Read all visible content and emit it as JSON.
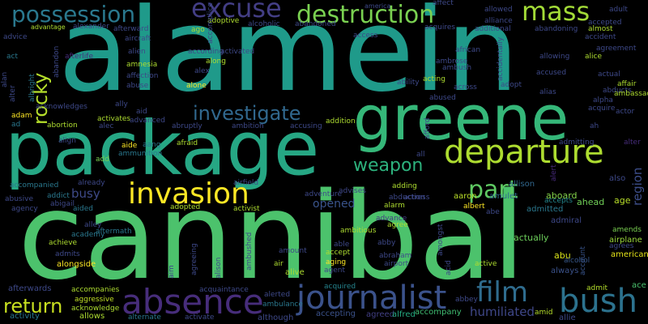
{
  "words": [
    {
      "text": "cannibal",
      "color": "#4cc26c"
    },
    {
      "text": "alamein",
      "color": "#1f9a8a"
    },
    {
      "text": "package",
      "color": "#26a784"
    },
    {
      "text": "greene",
      "color": "#35b779"
    },
    {
      "text": "absence",
      "color": "#472d7b"
    },
    {
      "text": "departure",
      "color": "#addc30"
    },
    {
      "text": "invasion",
      "color": "#fde725"
    },
    {
      "text": "journalist",
      "color": "#3b528b"
    },
    {
      "text": "excuse",
      "color": "#433e85"
    },
    {
      "text": "possession",
      "color": "#2a788e"
    },
    {
      "text": "destruction",
      "color": "#7ad151"
    },
    {
      "text": "mass",
      "color": "#a2da37"
    },
    {
      "text": "bush",
      "color": "#2c728e"
    },
    {
      "text": "investigate",
      "color": "#31688e"
    },
    {
      "text": "rocky",
      "color": "#b5de2b"
    },
    {
      "text": "part",
      "color": "#5ec962"
    },
    {
      "text": "film",
      "color": "#2f6c8e"
    },
    {
      "text": "weapon",
      "color": "#2db27d"
    },
    {
      "text": "return",
      "color": "#c8e020"
    },
    {
      "text": "busy",
      "color": "#3e4a89"
    },
    {
      "text": "humiliated",
      "color": "#3f4788"
    },
    {
      "text": "opened",
      "color": "#3a548c"
    },
    {
      "text": "region",
      "color": "#3d4e8a"
    },
    {
      "text": "aboard",
      "color": "#84d44b"
    },
    {
      "text": "also",
      "color": "#3e4989"
    },
    {
      "text": "actually",
      "color": "#6ccd5a"
    },
    {
      "text": "allison",
      "color": "#31688e"
    },
    {
      "text": "alert",
      "color": "#472a7a"
    },
    {
      "text": "ahead",
      "color": "#70cf57"
    },
    {
      "text": "age",
      "color": "#b8de29"
    },
    {
      "text": "aaron",
      "color": "#bade28"
    },
    {
      "text": "amulet",
      "color": "#2f6b8e"
    },
    {
      "text": "adventure",
      "color": "#3e4989"
    },
    {
      "text": "advises",
      "color": "#3f4788"
    },
    {
      "text": "admitted",
      "color": "#2a788e"
    },
    {
      "text": "admiral",
      "color": "#3e4989"
    },
    {
      "text": "advance",
      "color": "#443a83"
    },
    {
      "text": "abu",
      "color": "#d8e219"
    },
    {
      "text": "alcohol",
      "color": "#38588c"
    },
    {
      "text": "airplane",
      "color": "#9bd93c"
    },
    {
      "text": "american",
      "color": "#e5e419"
    },
    {
      "text": "always",
      "color": "#3b528b"
    },
    {
      "text": "amends",
      "color": "#7ad151"
    },
    {
      "text": "accepts",
      "color": "#24868e"
    },
    {
      "text": "account",
      "color": "#39558c"
    },
    {
      "text": "agrees",
      "color": "#3e4989"
    },
    {
      "text": "ace",
      "color": "#4ac16d"
    },
    {
      "text": "admit",
      "color": "#b5de2b"
    },
    {
      "text": "allie",
      "color": "#3e4989"
    },
    {
      "text": "amid",
      "color": "#b5de2b"
    },
    {
      "text": "abbey",
      "color": "#3e4989"
    },
    {
      "text": "accompany",
      "color": "#40bd72"
    },
    {
      "text": "agreed",
      "color": "#423f85"
    },
    {
      "text": "alfred",
      "color": "#25ab82"
    },
    {
      "text": "accepting",
      "color": "#3b528b"
    },
    {
      "text": "acquired",
      "color": "#25848e"
    },
    {
      "text": "although",
      "color": "#3e4989"
    },
    {
      "text": "ambulance",
      "color": "#2a788e"
    },
    {
      "text": "alerted",
      "color": "#3e4989"
    },
    {
      "text": "activate",
      "color": "#3e4989"
    },
    {
      "text": "alternate",
      "color": "#2a788e"
    },
    {
      "text": "allows",
      "color": "#addc30"
    },
    {
      "text": "activity",
      "color": "#2a788e"
    },
    {
      "text": "acknowledge",
      "color": "#addc30"
    },
    {
      "text": "aggressive",
      "color": "#c0df25"
    },
    {
      "text": "accompanies",
      "color": "#addc30"
    },
    {
      "text": "afterwards",
      "color": "#3e4989"
    },
    {
      "text": "alongside",
      "color": "#fde725"
    },
    {
      "text": "admits",
      "color": "#3e4989"
    },
    {
      "text": "achieve",
      "color": "#addc30"
    },
    {
      "text": "academy",
      "color": "#2a788e"
    },
    {
      "text": "alley",
      "color": "#3e4989"
    },
    {
      "text": "aftermath",
      "color": "#2a788e"
    },
    {
      "text": "aided",
      "color": "#2a788e"
    },
    {
      "text": "agency",
      "color": "#3e4989"
    },
    {
      "text": "abusive",
      "color": "#3e4989"
    },
    {
      "text": "addict",
      "color": "#2a788e"
    },
    {
      "text": "abigail",
      "color": "#3e4989"
    },
    {
      "text": "accompanied",
      "color": "#2a788e"
    },
    {
      "text": "already",
      "color": "#3e4989"
    },
    {
      "text": "add",
      "color": "#7ad151"
    },
    {
      "text": "adopted",
      "color": "#addc30"
    },
    {
      "text": "activist",
      "color": "#addc30"
    },
    {
      "text": "airfield",
      "color": "#3e4989"
    },
    {
      "text": "ammunition",
      "color": "#2a788e"
    },
    {
      "text": "aang",
      "color": "#2a788e"
    },
    {
      "text": "aide",
      "color": "#fde725"
    },
    {
      "text": "afraid",
      "color": "#addc30"
    },
    {
      "text": "align",
      "color": "#3e4989"
    },
    {
      "text": "abortion",
      "color": "#addc30"
    },
    {
      "text": "alec",
      "color": "#3e4989"
    },
    {
      "text": "advanced",
      "color": "#3e4989"
    },
    {
      "text": "activates",
      "color": "#addc30"
    },
    {
      "text": "aid",
      "color": "#3e4989"
    },
    {
      "text": "abruptly",
      "color": "#3e4989"
    },
    {
      "text": "ambition",
      "color": "#3e4989"
    },
    {
      "text": "accusing",
      "color": "#3e4989"
    },
    {
      "text": "addition",
      "color": "#addc30"
    },
    {
      "text": "adam",
      "color": "#fde725"
    },
    {
      "text": "ad",
      "color": "#2a788e"
    },
    {
      "text": "acknowledges",
      "color": "#3e4989"
    },
    {
      "text": "ally",
      "color": "#3e4989"
    },
    {
      "text": "albright",
      "color": "#2a788e"
    },
    {
      "text": "alter",
      "color": "#3e4989"
    },
    {
      "text": "alan",
      "color": "#3e4989"
    },
    {
      "text": "act",
      "color": "#2a788e"
    },
    {
      "text": "advice",
      "color": "#3e4989"
    },
    {
      "text": "advantage",
      "color": "#addc30"
    },
    {
      "text": "alexander",
      "color": "#3e4989"
    },
    {
      "text": "afterward",
      "color": "#3e4989"
    },
    {
      "text": "aircraft",
      "color": "#3e4989"
    },
    {
      "text": "adoptive",
      "color": "#addc30"
    },
    {
      "text": "alcoholic",
      "color": "#3e4989"
    },
    {
      "text": "abandoned",
      "color": "#3e4989"
    },
    {
      "text": "ago",
      "color": "#addc30"
    },
    {
      "text": "accomplice",
      "color": "#3e4989"
    },
    {
      "text": "afterlife",
      "color": "#472d7b"
    },
    {
      "text": "alien",
      "color": "#3e4989"
    },
    {
      "text": "according",
      "color": "#3e4989"
    },
    {
      "text": "activated",
      "color": "#3e4989"
    },
    {
      "text": "amnesia",
      "color": "#addc30"
    },
    {
      "text": "affection",
      "color": "#3e4989"
    },
    {
      "text": "abuse",
      "color": "#3e4989"
    },
    {
      "text": "along",
      "color": "#addc30"
    },
    {
      "text": "alex",
      "color": "#3e4989"
    },
    {
      "text": "alone",
      "color": "#fde725"
    },
    {
      "text": "abandon",
      "color": "#3e4989"
    },
    {
      "text": "america",
      "color": "#3e4989"
    },
    {
      "text": "affect",
      "color": "#3e4989"
    },
    {
      "text": "allowed",
      "color": "#3e4989"
    },
    {
      "text": "adult",
      "color": "#3e4989"
    },
    {
      "text": "acquires",
      "color": "#3e4989"
    },
    {
      "text": "alliance",
      "color": "#3e4989"
    },
    {
      "text": "additional",
      "color": "#3e4989"
    },
    {
      "text": "abandoning",
      "color": "#3e4989"
    },
    {
      "text": "accepted",
      "color": "#3e4989"
    },
    {
      "text": "almost",
      "color": "#addc30"
    },
    {
      "text": "access",
      "color": "#3e4989"
    },
    {
      "text": "african",
      "color": "#3e4989"
    },
    {
      "text": "accidentally",
      "color": "#3e4989"
    },
    {
      "text": "accident",
      "color": "#3e4989"
    },
    {
      "text": "agreement",
      "color": "#3e4989"
    },
    {
      "text": "alice",
      "color": "#addc30"
    },
    {
      "text": "allowing",
      "color": "#3e4989"
    },
    {
      "text": "actual",
      "color": "#3e4989"
    },
    {
      "text": "ambrose",
      "color": "#3e4989"
    },
    {
      "text": "ambush",
      "color": "#3e4989"
    },
    {
      "text": "accused",
      "color": "#3e4989"
    },
    {
      "text": "affair",
      "color": "#addc30"
    },
    {
      "text": "abducts",
      "color": "#3e4989"
    },
    {
      "text": "ambassador",
      "color": "#addc30"
    },
    {
      "text": "alpha",
      "color": "#3e4989"
    },
    {
      "text": "ability",
      "color": "#3e4989"
    },
    {
      "text": "acting",
      "color": "#addc30"
    },
    {
      "text": "across",
      "color": "#3e4989"
    },
    {
      "text": "adopt",
      "color": "#3e4989"
    },
    {
      "text": "alias",
      "color": "#3e4989"
    },
    {
      "text": "abused",
      "color": "#3e4989"
    },
    {
      "text": "acquire",
      "color": "#3e4989"
    },
    {
      "text": "actor",
      "color": "#3e4989"
    },
    {
      "text": "ah",
      "color": "#3e4989"
    },
    {
      "text": "alter",
      "color": "#472d7b"
    },
    {
      "text": "afford",
      "color": "#3e4989"
    },
    {
      "text": "all",
      "color": "#3e4989"
    },
    {
      "text": "admitting",
      "color": "#3e4989"
    },
    {
      "text": "actress",
      "color": "#3e4989"
    },
    {
      "text": "adding",
      "color": "#addc30"
    },
    {
      "text": "abduction",
      "color": "#3e4989"
    },
    {
      "text": "albert",
      "color": "#fde725"
    },
    {
      "text": "abe",
      "color": "#3e4989"
    },
    {
      "text": "alarm",
      "color": "#addc30"
    },
    {
      "text": "agree",
      "color": "#addc30"
    },
    {
      "text": "ambitious",
      "color": "#addc30"
    },
    {
      "text": "able",
      "color": "#3e4989"
    },
    {
      "text": "abby",
      "color": "#3e4989"
    },
    {
      "text": "amount",
      "color": "#3e4989"
    },
    {
      "text": "accept",
      "color": "#addc30"
    },
    {
      "text": "abraham",
      "color": "#3e4989"
    },
    {
      "text": "aging",
      "color": "#fde725"
    },
    {
      "text": "airport",
      "color": "#3e4989"
    },
    {
      "text": "agent",
      "color": "#3e4989"
    },
    {
      "text": "air",
      "color": "#addc30"
    },
    {
      "text": "alive",
      "color": "#addc30"
    },
    {
      "text": "amongst",
      "color": "#3e4989"
    },
    {
      "text": "acid",
      "color": "#3e4989"
    },
    {
      "text": "active",
      "color": "#addc30"
    },
    {
      "text": "alison",
      "color": "#3e4989"
    },
    {
      "text": "ambushed",
      "color": "#3e4989"
    },
    {
      "text": "agreeing",
      "color": "#3e4989"
    },
    {
      "text": "aim",
      "color": "#3e4989"
    },
    {
      "text": "acquaintance",
      "color": "#3e4989"
    }
  ]
}
